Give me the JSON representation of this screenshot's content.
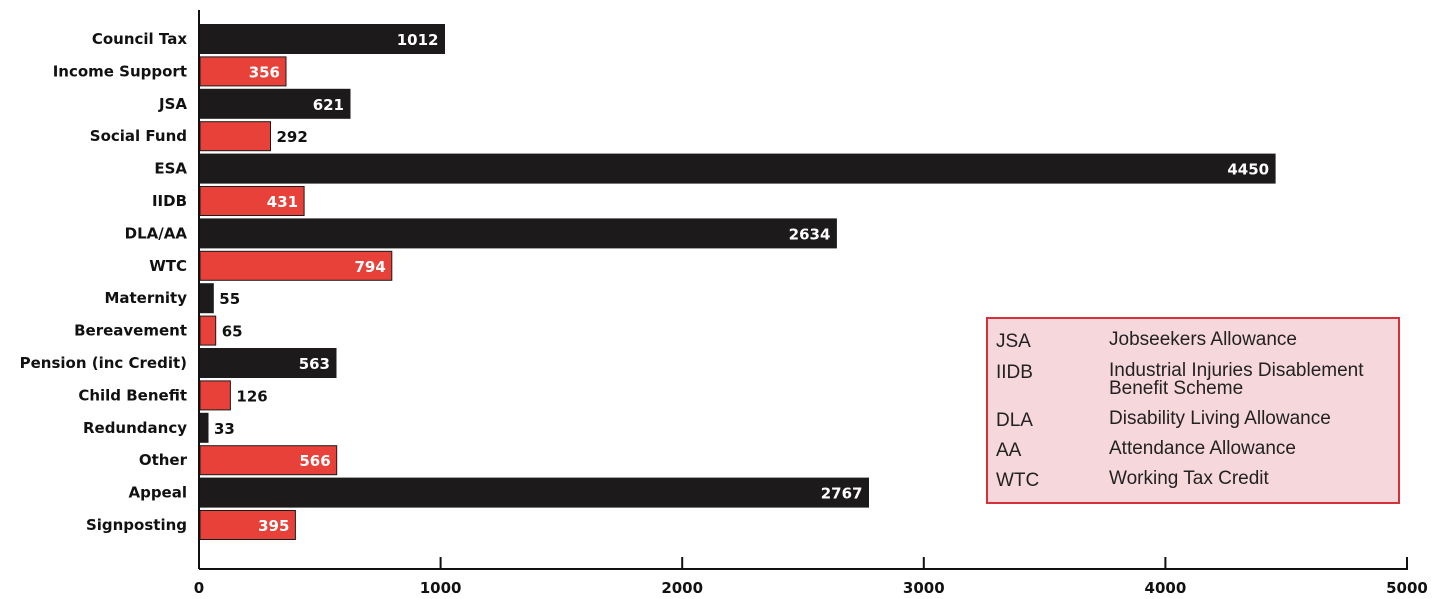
{
  "chart_data": {
    "type": "bar",
    "orientation": "horizontal",
    "categories": [
      "Council Tax",
      "Income Support",
      "JSA",
      "Social Fund",
      "ESA",
      "IIDB",
      "DLA/AA",
      "WTC",
      "Maternity",
      "Bereavement",
      "Pension (inc Credit)",
      "Child Benefit",
      "Redundancy",
      "Other",
      "Appeal",
      "Signposting"
    ],
    "values": [
      1012,
      356,
      621,
      292,
      4450,
      431,
      2634,
      794,
      55,
      65,
      563,
      126,
      33,
      566,
      2767,
      395
    ],
    "bar_colors": [
      "#1c1a1b",
      "#e8413a",
      "#1c1a1b",
      "#e8413a",
      "#1c1a1b",
      "#e8413a",
      "#1c1a1b",
      "#e8413a",
      "#1c1a1b",
      "#e8413a",
      "#1c1a1b",
      "#e8413a",
      "#1c1a1b",
      "#e8413a",
      "#1c1a1b",
      "#e8413a"
    ],
    "xlim": [
      0,
      5000
    ],
    "x_ticks": [
      "0",
      "1000",
      "2000",
      "3000",
      "4000",
      "5000"
    ],
    "grid": false,
    "title": "",
    "xlabel": "",
    "ylabel": ""
  },
  "legend": {
    "entries": [
      {
        "abbr": "JSA",
        "desc": "Jobseekers Allowance"
      },
      {
        "abbr": "IIDB",
        "desc": "Industrial Injuries Disablement Benefit Scheme"
      },
      {
        "abbr": "DLA",
        "desc": "Disability Living Allowance"
      },
      {
        "abbr": "AA",
        "desc": "Attendance Allowance"
      },
      {
        "abbr": "WTC",
        "desc": "Working Tax Credit"
      }
    ],
    "colors": {
      "background": "#f6d7db",
      "border": "#d6313a"
    }
  }
}
